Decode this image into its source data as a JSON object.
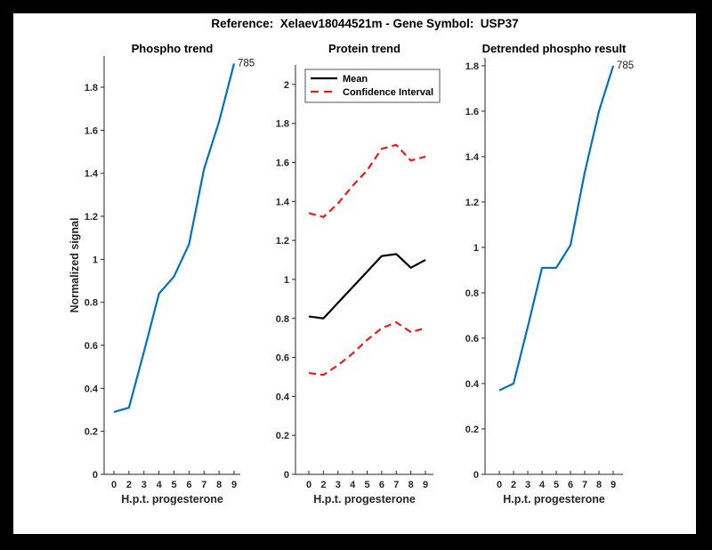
{
  "figure": {
    "title": "Reference:  Xelaev18044521m - Gene Symbol:  USP37"
  },
  "colors": {
    "line_blue": "#0072bd",
    "ci_red": "#ef1a1a",
    "mean_black": "#000000",
    "axis": "#262626",
    "background": "#ffffff",
    "border": "#000000"
  },
  "chart_data": [
    {
      "type": "line",
      "title": "Phospho trend",
      "xlabel": "H.p.t. progesterone",
      "ylabel": "Normalized signal",
      "categories": [
        "0",
        "2",
        "3",
        "4",
        "5",
        "6",
        "7",
        "8",
        "9"
      ],
      "yticks": [
        0,
        0.2,
        0.4,
        0.6,
        0.8,
        1,
        1.2,
        1.4,
        1.6,
        1.8
      ],
      "ylim": [
        0,
        1.945
      ],
      "end_label": "785",
      "legend": null,
      "series": [
        {
          "name": "phospho",
          "color": "#0072bd",
          "style": "solid",
          "values": [
            0.29,
            0.31,
            0.57,
            0.84,
            0.92,
            1.07,
            1.42,
            1.64,
            1.91
          ]
        }
      ]
    },
    {
      "type": "line",
      "title": "Protein trend",
      "xlabel": "H.p.t. progesterone",
      "ylabel": "",
      "categories": [
        "0",
        "2",
        "3",
        "4",
        "5",
        "6",
        "7",
        "8",
        "9"
      ],
      "yticks": [
        0,
        0.2,
        0.4,
        0.6,
        0.8,
        1,
        1.2,
        1.4,
        1.6,
        1.8,
        2
      ],
      "ylim": [
        0,
        2.1
      ],
      "end_label": null,
      "legend": {
        "position": "top-left",
        "entries": [
          {
            "label": "Mean",
            "color": "#000000",
            "style": "solid"
          },
          {
            "label": "Confidence Interval",
            "color": "#ef1a1a",
            "style": "dashed"
          }
        ]
      },
      "series": [
        {
          "name": "mean",
          "color": "#000000",
          "style": "solid",
          "values": [
            0.81,
            0.8,
            0.88,
            0.96,
            1.04,
            1.12,
            1.13,
            1.06,
            1.1
          ]
        },
        {
          "name": "ci-upper",
          "color": "#ef1a1a",
          "style": "dashed",
          "values": [
            1.34,
            1.32,
            1.39,
            1.48,
            1.56,
            1.67,
            1.69,
            1.61,
            1.63
          ]
        },
        {
          "name": "ci-lower",
          "color": "#ef1a1a",
          "style": "dashed",
          "values": [
            0.52,
            0.51,
            0.56,
            0.62,
            0.69,
            0.75,
            0.78,
            0.73,
            0.75
          ]
        }
      ]
    },
    {
      "type": "line",
      "title": "Detrended phospho result",
      "xlabel": "H.p.t. progesterone",
      "ylabel": "",
      "categories": [
        "0",
        "2",
        "3",
        "4",
        "5",
        "6",
        "7",
        "8",
        "9"
      ],
      "yticks": [
        0,
        0.2,
        0.4,
        0.6,
        0.8,
        1,
        1.2,
        1.4,
        1.6,
        1.8
      ],
      "ylim": [
        0,
        1.835
      ],
      "end_label": "785",
      "legend": null,
      "series": [
        {
          "name": "detrended",
          "color": "#0072bd",
          "style": "solid",
          "values": [
            0.37,
            0.4,
            0.65,
            0.91,
            0.91,
            1.01,
            1.33,
            1.6,
            1.8
          ]
        }
      ]
    }
  ]
}
